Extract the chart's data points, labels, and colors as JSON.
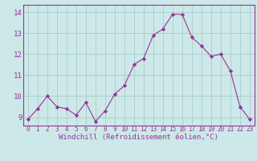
{
  "x": [
    0,
    1,
    2,
    3,
    4,
    5,
    6,
    7,
    8,
    9,
    10,
    11,
    12,
    13,
    14,
    15,
    16,
    17,
    18,
    19,
    20,
    21,
    22,
    23
  ],
  "y": [
    8.9,
    9.4,
    10.0,
    9.5,
    9.4,
    9.1,
    9.7,
    8.8,
    9.3,
    10.1,
    10.5,
    11.5,
    11.8,
    12.9,
    13.2,
    13.9,
    13.9,
    12.8,
    12.4,
    11.9,
    12.0,
    11.2,
    9.5,
    8.9
  ],
  "line_color": "#993399",
  "marker": "D",
  "marker_size": 2.2,
  "bg_color": "#cce8e8",
  "grid_color": "#aacccc",
  "xlabel": "Windchill (Refroidissement éolien,°C)",
  "ylabel_ticks": [
    9,
    10,
    11,
    12,
    13,
    14
  ],
  "xlim": [
    -0.5,
    23.5
  ],
  "ylim": [
    8.6,
    14.35
  ],
  "tick_color": "#993399",
  "label_color": "#993399",
  "xlabel_fontsize": 6.5,
  "ytick_fontsize": 6.5,
  "xtick_fontsize": 5.5,
  "spine_color": "#993399"
}
